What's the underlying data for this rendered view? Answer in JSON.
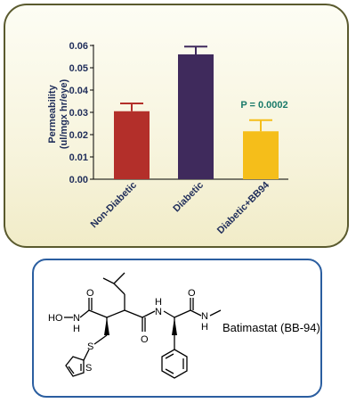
{
  "chart_data": {
    "type": "bar",
    "categories": [
      "Non-Diabetic",
      "Diabetic",
      "Diabetic+BB94"
    ],
    "values": [
      0.0305,
      0.056,
      0.0215
    ],
    "errors": [
      0.0035,
      0.0035,
      0.005
    ],
    "colors": [
      "#b32f2a",
      "#3f2a5c",
      "#f5be1a"
    ],
    "ylabel_line1": "Permeability",
    "ylabel_line2": "(ul/mgx hr/eye)",
    "ylim": [
      0,
      0.06
    ],
    "yticks": [
      "0.00",
      "0.01",
      "0.02",
      "0.03",
      "0.04",
      "0.05",
      "0.06"
    ],
    "annotation": "P = 0.0002",
    "grid": false
  },
  "structure": {
    "compound_name": "Batimastat (BB-94)",
    "atoms": {
      "ho": "HO",
      "n_left": "N",
      "h_left": "H",
      "o1": "O",
      "n_mid": "N",
      "h_mid": "H",
      "o2": "O",
      "o3": "O",
      "n_right": "N",
      "h_right": "H",
      "s_thio": "S",
      "s_ring": "S"
    }
  }
}
